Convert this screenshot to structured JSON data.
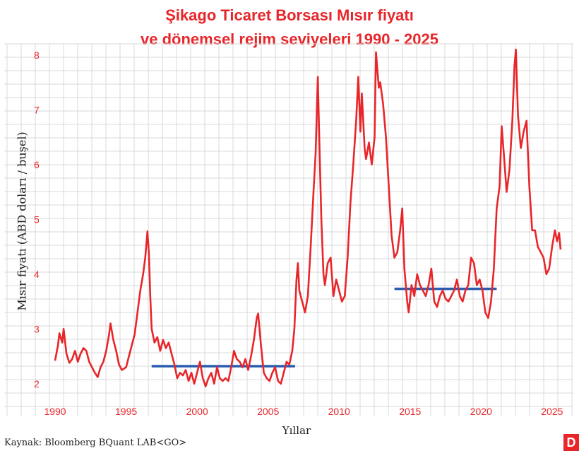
{
  "title_line1": "Şikago Ticaret Borsası Mısır fiyatı",
  "title_line2": "ve dönemsel rejim seviyeleri 1990 - 2025",
  "source": "Kaynak: Bloomberg BQuant LAB<GO>",
  "logo": "D",
  "colors": {
    "accent": "#e8262a",
    "regime": "#2a5db0",
    "grid": "#d9d9d9"
  },
  "chart_data": {
    "type": "line",
    "title": "Şikago Ticaret Borsası Mısır fiyatı ve dönemsel rejim seviyeleri 1990 - 2025",
    "xlabel": "Yıllar",
    "ylabel": "Mısır fiyatı (ABD doları / buşel)",
    "xlim": [
      1989.6,
      2026.3
    ],
    "ylim": [
      1.7,
      8.1
    ],
    "x_ticks": [
      1990,
      1995,
      2000,
      2005,
      2010,
      2015,
      2020,
      2025
    ],
    "y_ticks": [
      2,
      3,
      4,
      5,
      6,
      7,
      8
    ],
    "grid": true,
    "series": [
      {
        "points": [
          [
            1990.0,
            2.42
          ],
          [
            1990.2,
            2.7
          ],
          [
            1990.3,
            2.92
          ],
          [
            1990.5,
            2.75
          ],
          [
            1990.6,
            3.0
          ],
          [
            1990.8,
            2.55
          ],
          [
            1991.0,
            2.38
          ],
          [
            1991.2,
            2.45
          ],
          [
            1991.4,
            2.6
          ],
          [
            1991.6,
            2.4
          ],
          [
            1991.8,
            2.55
          ],
          [
            1992.0,
            2.65
          ],
          [
            1992.2,
            2.6
          ],
          [
            1992.4,
            2.4
          ],
          [
            1992.6,
            2.3
          ],
          [
            1992.8,
            2.2
          ],
          [
            1993.0,
            2.12
          ],
          [
            1993.2,
            2.3
          ],
          [
            1993.4,
            2.4
          ],
          [
            1993.6,
            2.6
          ],
          [
            1993.8,
            2.9
          ],
          [
            1993.9,
            3.1
          ],
          [
            1994.1,
            2.8
          ],
          [
            1994.3,
            2.6
          ],
          [
            1994.5,
            2.35
          ],
          [
            1994.7,
            2.25
          ],
          [
            1995.0,
            2.3
          ],
          [
            1995.2,
            2.5
          ],
          [
            1995.4,
            2.7
          ],
          [
            1995.6,
            2.9
          ],
          [
            1995.8,
            3.3
          ],
          [
            1996.0,
            3.7
          ],
          [
            1996.2,
            4.0
          ],
          [
            1996.35,
            4.3
          ],
          [
            1996.5,
            4.78
          ],
          [
            1996.6,
            4.4
          ],
          [
            1996.7,
            3.6
          ],
          [
            1996.8,
            3.0
          ],
          [
            1997.0,
            2.75
          ],
          [
            1997.2,
            2.85
          ],
          [
            1997.4,
            2.6
          ],
          [
            1997.6,
            2.8
          ],
          [
            1997.8,
            2.65
          ],
          [
            1998.0,
            2.75
          ],
          [
            1998.2,
            2.55
          ],
          [
            1998.4,
            2.35
          ],
          [
            1998.6,
            2.1
          ],
          [
            1998.8,
            2.2
          ],
          [
            1999.0,
            2.15
          ],
          [
            1999.2,
            2.25
          ],
          [
            1999.4,
            2.05
          ],
          [
            1999.6,
            2.2
          ],
          [
            1999.8,
            2.0
          ],
          [
            2000.0,
            2.2
          ],
          [
            2000.2,
            2.4
          ],
          [
            2000.4,
            2.1
          ],
          [
            2000.6,
            1.95
          ],
          [
            2000.8,
            2.1
          ],
          [
            2001.0,
            2.2
          ],
          [
            2001.2,
            2.0
          ],
          [
            2001.4,
            2.3
          ],
          [
            2001.6,
            2.1
          ],
          [
            2001.8,
            2.05
          ],
          [
            2002.0,
            2.1
          ],
          [
            2002.2,
            2.05
          ],
          [
            2002.4,
            2.3
          ],
          [
            2002.6,
            2.6
          ],
          [
            2002.8,
            2.45
          ],
          [
            2003.0,
            2.4
          ],
          [
            2003.2,
            2.3
          ],
          [
            2003.4,
            2.45
          ],
          [
            2003.6,
            2.25
          ],
          [
            2003.8,
            2.5
          ],
          [
            2004.0,
            2.8
          ],
          [
            2004.2,
            3.2
          ],
          [
            2004.3,
            3.28
          ],
          [
            2004.5,
            2.7
          ],
          [
            2004.7,
            2.2
          ],
          [
            2004.9,
            2.1
          ],
          [
            2005.1,
            2.05
          ],
          [
            2005.3,
            2.2
          ],
          [
            2005.5,
            2.3
          ],
          [
            2005.7,
            2.05
          ],
          [
            2005.9,
            2.0
          ],
          [
            2006.1,
            2.2
          ],
          [
            2006.3,
            2.4
          ],
          [
            2006.5,
            2.35
          ],
          [
            2006.7,
            2.6
          ],
          [
            2006.85,
            3.0
          ],
          [
            2007.0,
            3.9
          ],
          [
            2007.1,
            4.2
          ],
          [
            2007.2,
            3.7
          ],
          [
            2007.4,
            3.5
          ],
          [
            2007.6,
            3.3
          ],
          [
            2007.8,
            3.6
          ],
          [
            2008.0,
            4.5
          ],
          [
            2008.2,
            5.5
          ],
          [
            2008.35,
            6.2
          ],
          [
            2008.5,
            7.6
          ],
          [
            2008.6,
            6.5
          ],
          [
            2008.75,
            5.0
          ],
          [
            2008.9,
            4.0
          ],
          [
            2009.0,
            3.8
          ],
          [
            2009.2,
            4.2
          ],
          [
            2009.4,
            4.3
          ],
          [
            2009.6,
            3.6
          ],
          [
            2009.8,
            3.9
          ],
          [
            2010.0,
            3.7
          ],
          [
            2010.2,
            3.5
          ],
          [
            2010.4,
            3.6
          ],
          [
            2010.6,
            4.3
          ],
          [
            2010.8,
            5.3
          ],
          [
            2011.0,
            6.0
          ],
          [
            2011.2,
            6.8
          ],
          [
            2011.35,
            7.6
          ],
          [
            2011.5,
            6.6
          ],
          [
            2011.6,
            7.3
          ],
          [
            2011.8,
            6.3
          ],
          [
            2011.9,
            6.1
          ],
          [
            2012.1,
            6.4
          ],
          [
            2012.3,
            6.0
          ],
          [
            2012.5,
            6.5
          ],
          [
            2012.6,
            8.05
          ],
          [
            2012.8,
            7.4
          ],
          [
            2012.9,
            7.5
          ],
          [
            2013.1,
            7.1
          ],
          [
            2013.3,
            6.5
          ],
          [
            2013.5,
            5.6
          ],
          [
            2013.7,
            4.7
          ],
          [
            2013.9,
            4.3
          ],
          [
            2014.1,
            4.4
          ],
          [
            2014.3,
            4.8
          ],
          [
            2014.45,
            5.2
          ],
          [
            2014.6,
            4.1
          ],
          [
            2014.8,
            3.5
          ],
          [
            2014.9,
            3.3
          ],
          [
            2015.1,
            3.8
          ],
          [
            2015.3,
            3.6
          ],
          [
            2015.5,
            4.0
          ],
          [
            2015.7,
            3.8
          ],
          [
            2015.9,
            3.7
          ],
          [
            2016.1,
            3.6
          ],
          [
            2016.3,
            3.8
          ],
          [
            2016.5,
            4.1
          ],
          [
            2016.7,
            3.5
          ],
          [
            2016.9,
            3.4
          ],
          [
            2017.1,
            3.6
          ],
          [
            2017.3,
            3.7
          ],
          [
            2017.5,
            3.55
          ],
          [
            2017.7,
            3.5
          ],
          [
            2017.9,
            3.6
          ],
          [
            2018.1,
            3.7
          ],
          [
            2018.3,
            3.9
          ],
          [
            2018.5,
            3.6
          ],
          [
            2018.7,
            3.5
          ],
          [
            2018.9,
            3.7
          ],
          [
            2019.1,
            3.8
          ],
          [
            2019.3,
            4.3
          ],
          [
            2019.5,
            4.2
          ],
          [
            2019.7,
            3.8
          ],
          [
            2019.9,
            3.9
          ],
          [
            2020.1,
            3.7
          ],
          [
            2020.3,
            3.3
          ],
          [
            2020.5,
            3.2
          ],
          [
            2020.7,
            3.5
          ],
          [
            2020.9,
            4.1
          ],
          [
            2021.1,
            5.2
          ],
          [
            2021.3,
            5.6
          ],
          [
            2021.45,
            6.7
          ],
          [
            2021.6,
            6.2
          ],
          [
            2021.8,
            5.5
          ],
          [
            2022.0,
            5.9
          ],
          [
            2022.2,
            6.8
          ],
          [
            2022.35,
            7.8
          ],
          [
            2022.45,
            8.1
          ],
          [
            2022.6,
            6.9
          ],
          [
            2022.8,
            6.3
          ],
          [
            2023.0,
            6.6
          ],
          [
            2023.2,
            6.8
          ],
          [
            2023.4,
            5.6
          ],
          [
            2023.6,
            4.8
          ],
          [
            2023.8,
            4.8
          ],
          [
            2024.0,
            4.5
          ],
          [
            2024.2,
            4.4
          ],
          [
            2024.4,
            4.3
          ],
          [
            2024.6,
            4.0
          ],
          [
            2024.8,
            4.1
          ],
          [
            2025.0,
            4.5
          ],
          [
            2025.2,
            4.8
          ],
          [
            2025.35,
            4.6
          ],
          [
            2025.5,
            4.75
          ],
          [
            2025.6,
            4.45
          ]
        ]
      }
    ],
    "regime_levels": [
      {
        "x_start": 1996.8,
        "x_end": 2006.9,
        "y": 2.32
      },
      {
        "x_start": 2013.9,
        "x_end": 2021.1,
        "y": 3.73
      }
    ]
  }
}
